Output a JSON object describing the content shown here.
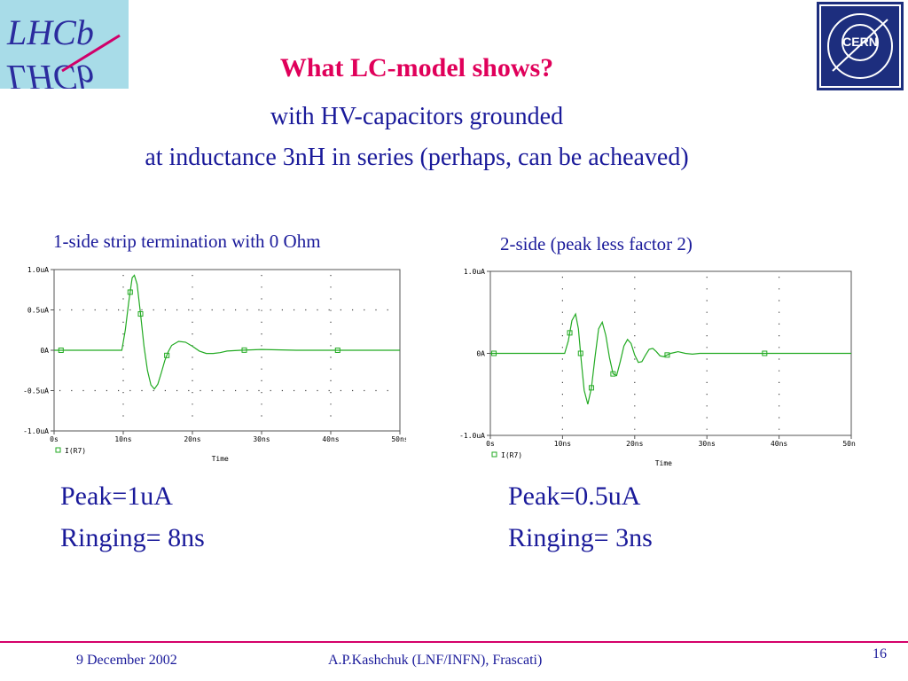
{
  "header": {
    "title": "What LC-model shows?",
    "subtitle_line1": "with HV-capacitors grounded",
    "subtitle_line2": "at inductance 3nH in series (perhaps, can be acheaved)"
  },
  "left_panel": {
    "heading": "1-side strip termination with 0 Ohm",
    "peak": "Peak=1uA",
    "ringing": "Ringing= 8ns"
  },
  "right_panel": {
    "heading": "2-side (peak less factor 2)",
    "peak": "Peak=0.5uA",
    "ringing": "Ringing= 3ns"
  },
  "footer": {
    "date": "9 December 2002",
    "author": "A.P.Kashchuk (LNF/INFN), Frascati)",
    "page_number": "16"
  },
  "colors": {
    "title": "#e0005a",
    "text": "#1a1a9a",
    "trace": "#22aa22",
    "rule": "#d4006a"
  },
  "chart_data": [
    {
      "type": "line",
      "xlabel": "Time",
      "ylabel": "",
      "x_ticks": [
        "0s",
        "10ns",
        "20ns",
        "30ns",
        "40ns",
        "50ns"
      ],
      "y_ticks": [
        "1.0uA",
        "0.5uA",
        "0A",
        "-0.5uA",
        "-1.0uA"
      ],
      "y_tick_values": [
        1.0,
        0.5,
        0,
        -0.5,
        -1.0
      ],
      "xlim": [
        0,
        50
      ],
      "ylim": [
        -1.0,
        1.0
      ],
      "grid": "dotted",
      "legend": "bottom-left",
      "series": [
        {
          "name": "I(R7)",
          "color": "#22aa22",
          "x": [
            0,
            9.8,
            10.3,
            10.8,
            11.3,
            11.6,
            12.0,
            12.5,
            13.0,
            13.5,
            14.0,
            14.5,
            15.0,
            15.5,
            16.0,
            16.5,
            17.0,
            18.0,
            19.0,
            20.0,
            21.0,
            22.0,
            23.0,
            24.0,
            25.0,
            27.0,
            30.0,
            35.0,
            40.0,
            45.0,
            50.0
          ],
          "y": [
            0,
            0,
            0.25,
            0.6,
            0.9,
            0.93,
            0.82,
            0.45,
            0.05,
            -0.25,
            -0.43,
            -0.48,
            -0.42,
            -0.28,
            -0.13,
            -0.02,
            0.06,
            0.11,
            0.1,
            0.05,
            -0.01,
            -0.04,
            -0.04,
            -0.03,
            -0.01,
            0.0,
            0.01,
            0.0,
            0.0,
            0.0,
            0.0
          ],
          "markers_x": [
            1,
            11,
            12.5,
            16.3,
            27.5,
            41
          ]
        }
      ]
    },
    {
      "type": "line",
      "xlabel": "Time",
      "ylabel": "",
      "x_ticks": [
        "0s",
        "10ns",
        "20ns",
        "30ns",
        "40ns",
        "50ns"
      ],
      "y_ticks": [
        "1.0uA",
        "0A",
        "-1.0uA"
      ],
      "y_tick_values": [
        1.0,
        0,
        -1.0
      ],
      "xlim": [
        0,
        50
      ],
      "ylim": [
        -1.0,
        1.0
      ],
      "grid": "dotted",
      "legend": "bottom-left",
      "series": [
        {
          "name": "I(R7)",
          "color": "#22aa22",
          "x": [
            0,
            10.3,
            10.8,
            11.3,
            11.8,
            12.2,
            12.6,
            13.0,
            13.5,
            14.0,
            14.5,
            15.0,
            15.5,
            16.0,
            16.5,
            17.0,
            17.5,
            18.0,
            18.5,
            19.0,
            19.5,
            20.0,
            20.5,
            21.0,
            21.5,
            22.0,
            22.5,
            23.0,
            23.5,
            24.0,
            25.0,
            26.0,
            27.0,
            28.0,
            29.0,
            30.0,
            35.0,
            40.0,
            45.0,
            50.0
          ],
          "y": [
            0,
            0,
            0.15,
            0.4,
            0.48,
            0.3,
            -0.1,
            -0.45,
            -0.62,
            -0.42,
            -0.05,
            0.3,
            0.38,
            0.22,
            -0.05,
            -0.25,
            -0.27,
            -0.1,
            0.09,
            0.17,
            0.12,
            -0.02,
            -0.11,
            -0.1,
            -0.02,
            0.05,
            0.06,
            0.02,
            -0.03,
            -0.04,
            0.0,
            0.02,
            0.0,
            -0.01,
            0.0,
            0.0,
            0.0,
            0.0,
            0.0,
            0.0
          ],
          "markers_x": [
            0.5,
            11.0,
            12.5,
            14.0,
            17.0,
            24.5,
            38.0
          ]
        }
      ]
    }
  ]
}
